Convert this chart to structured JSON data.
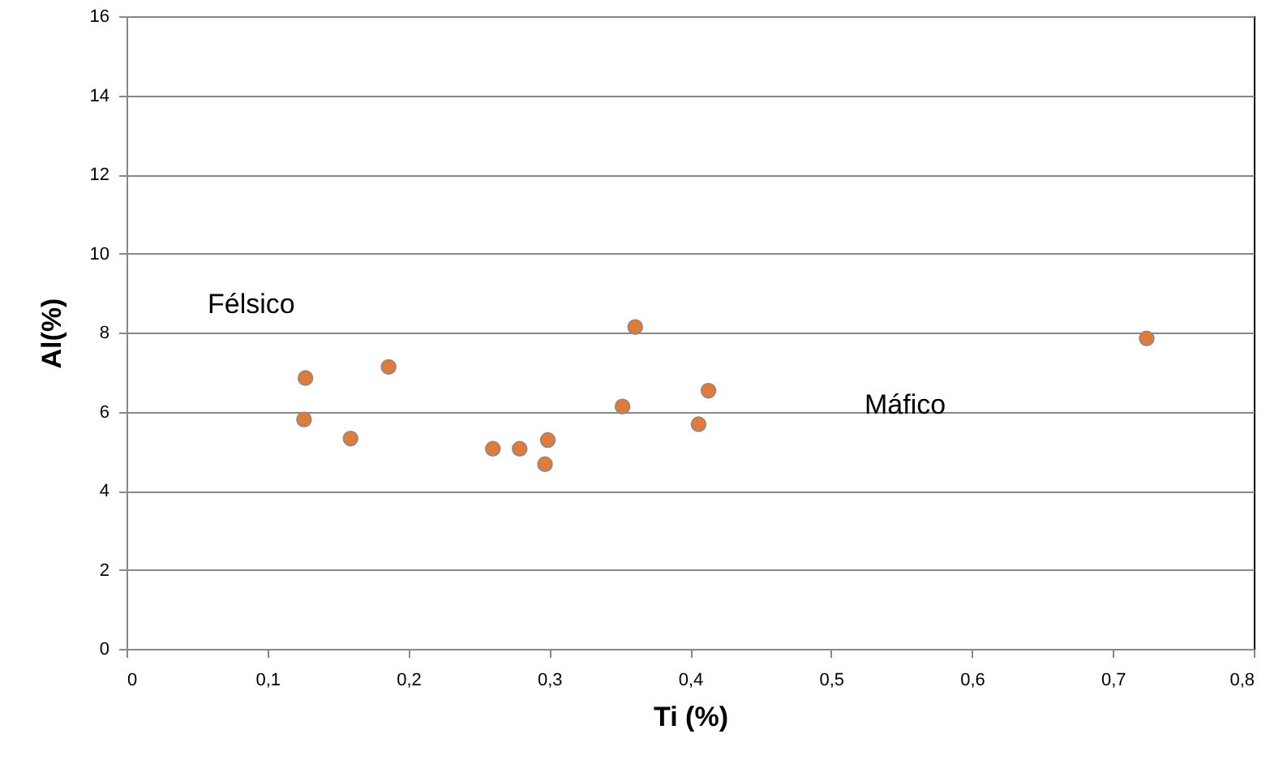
{
  "chart_data": {
    "type": "scatter",
    "xlabel": "Ti (%)",
    "ylabel": "Al(%)",
    "x": [
      0.127,
      0.126,
      0.159,
      0.186,
      0.26,
      0.279,
      0.299,
      0.297,
      0.352,
      0.361,
      0.413,
      0.406,
      0.724
    ],
    "series": [
      {
        "color": "#e07b39",
        "values": [
          6.85,
          5.8,
          5.32,
          7.13,
          5.06,
          5.06,
          5.28,
          4.67,
          6.13,
          8.14,
          6.53,
          5.68,
          7.85
        ]
      }
    ],
    "xlim": [
      0,
      0.8
    ],
    "ylim": [
      0,
      16
    ],
    "xticks": [
      0,
      {
        "value": 0.1,
        "label": "0,1"
      },
      {
        "value": 0.2,
        "label": "0,2"
      },
      {
        "value": 0.3,
        "label": "0,3"
      },
      {
        "value": 0.4,
        "label": "0,4"
      },
      {
        "value": 0.5,
        "label": "0,5"
      },
      {
        "value": 0.6,
        "label": "0,6"
      },
      {
        "value": 0.7,
        "label": "0,7"
      },
      {
        "value": 0.8,
        "label": "0,8"
      }
    ],
    "yticks": [
      0,
      2,
      4,
      6,
      8,
      10,
      12,
      14,
      16
    ],
    "annotations": [
      "Félsico",
      "Máfico"
    ],
    "grid": "y",
    "marker": "circle"
  }
}
